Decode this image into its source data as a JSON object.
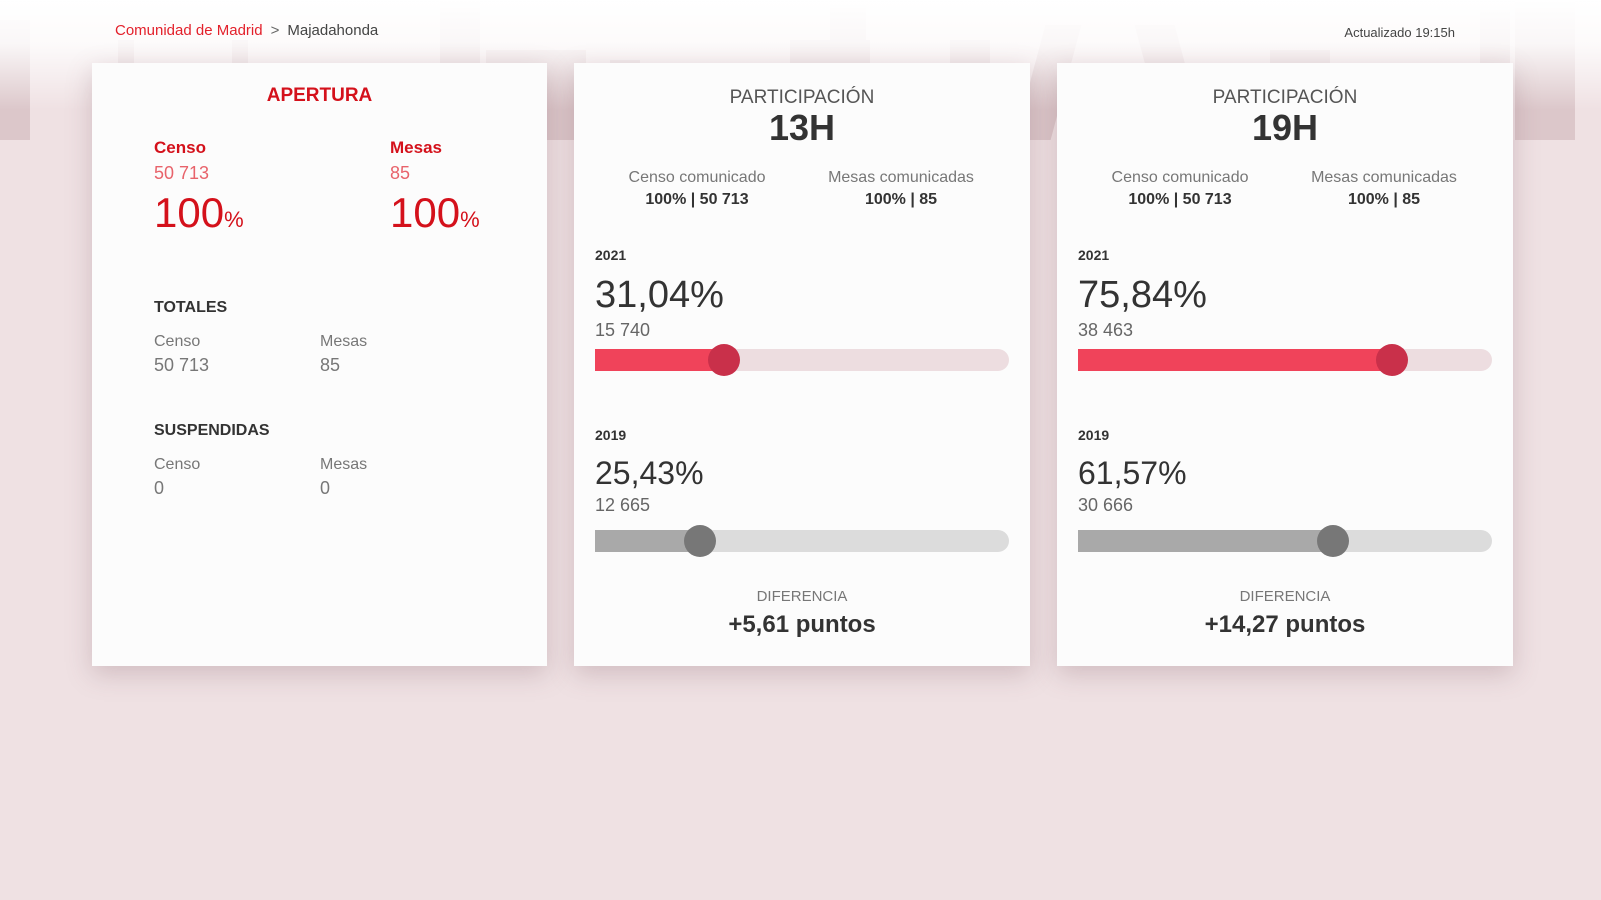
{
  "breadcrumb": {
    "parent": "Comunidad de Madrid",
    "separator": ">",
    "current": "Majadahonda"
  },
  "updated": "Actualizado 19:15h",
  "apertura": {
    "title": "APERTURA",
    "censo_label": "Censo",
    "censo_value": "50 713",
    "censo_pct": "100",
    "mesas_label": "Mesas",
    "mesas_value": "85",
    "mesas_pct": "100",
    "pct_sign": "%",
    "totales": {
      "title": "TOTALES",
      "censo_label": "Censo",
      "censo_value": "50 713",
      "mesas_label": "Mesas",
      "mesas_value": "85"
    },
    "suspendidas": {
      "title": "SUSPENDIDAS",
      "censo_label": "Censo",
      "censo_value": "0",
      "mesas_label": "Mesas",
      "mesas_value": "0"
    }
  },
  "participacion": [
    {
      "title": "PARTICIPACIÓN",
      "hour": "13H",
      "censo_label": "Censo comunicado",
      "censo_value": "100% | 50 713",
      "mesas_label": "Mesas comunicadas",
      "mesas_value": "100% | 85",
      "current": {
        "year": "2021",
        "pct": "31,04%",
        "count": "15 740",
        "fraction": 0.3104
      },
      "previous": {
        "year": "2019",
        "pct": "25,43%",
        "count": "12 665",
        "fraction": 0.2543
      },
      "diff_label": "DIFERENCIA",
      "diff_value": "+5,61 puntos"
    },
    {
      "title": "PARTICIPACIÓN",
      "hour": "19H",
      "censo_label": "Censo comunicado",
      "censo_value": "100% | 50 713",
      "mesas_label": "Mesas comunicadas",
      "mesas_value": "100% | 85",
      "current": {
        "year": "2021",
        "pct": "75,84%",
        "count": "38 463",
        "fraction": 0.7584
      },
      "previous": {
        "year": "2019",
        "pct": "61,57%",
        "count": "30 666",
        "fraction": 0.6157
      },
      "diff_label": "DIFERENCIA",
      "diff_value": "+14,27 puntos"
    }
  ],
  "colors": {
    "accent": "#d4111b",
    "bar_current": "#f0435a",
    "bar_previous": "#a9a9a9",
    "background": "#efe1e3"
  }
}
